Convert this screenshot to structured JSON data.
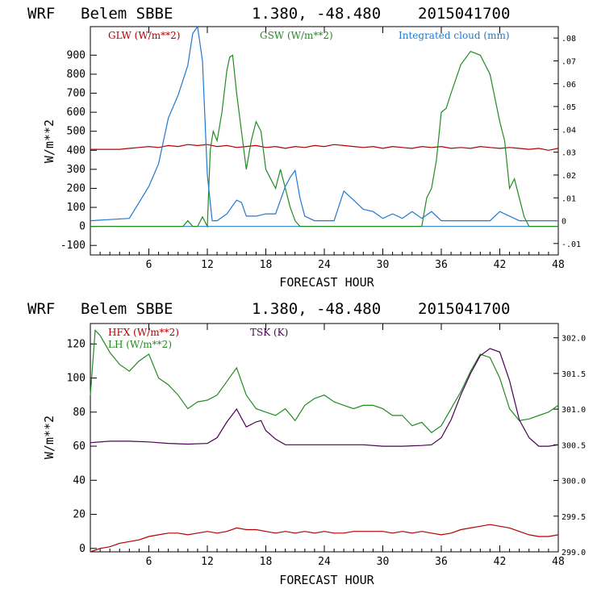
{
  "chart_data": [
    {
      "type": "line",
      "title": {
        "model": "WRF",
        "station": "Belem SBBE",
        "coords": "1.380, -48.480",
        "run": "2015041700"
      },
      "xlabel": "FORECAST HOUR",
      "ylabel": "W/m**2",
      "xlim": [
        0,
        48
      ],
      "ylim": [
        -150,
        1050
      ],
      "y2lim": [
        -0.015,
        0.085
      ],
      "x_ticks": [
        "6",
        "12",
        "18",
        "24",
        "30",
        "36",
        "42",
        "48"
      ],
      "y_ticks": [
        "-100",
        "0",
        "100",
        "200",
        "300",
        "400",
        "500",
        "600",
        "700",
        "800",
        "900"
      ],
      "y2_ticks": [
        "-.01",
        "0",
        ".01",
        ".02",
        ".03",
        ".04",
        ".05",
        ".06",
        ".07",
        ".08"
      ],
      "series": [
        {
          "name": "GLW (W/m**2)",
          "axis": "left",
          "color": "#b30000",
          "x": [
            0,
            3,
            4,
            5,
            6,
            7,
            8,
            9,
            10,
            11,
            12,
            13,
            14,
            15,
            16,
            17,
            18,
            19,
            20,
            21,
            22,
            23,
            24,
            25,
            26,
            27,
            28,
            29,
            30,
            31,
            32,
            33,
            34,
            35,
            36,
            37,
            38,
            39,
            40,
            41,
            42,
            43,
            44,
            45,
            46,
            47,
            48
          ],
          "values": [
            405,
            405,
            410,
            415,
            420,
            415,
            425,
            420,
            430,
            425,
            430,
            420,
            425,
            415,
            420,
            425,
            415,
            420,
            410,
            420,
            415,
            425,
            420,
            430,
            425,
            420,
            415,
            420,
            410,
            420,
            415,
            410,
            420,
            415,
            420,
            410,
            415,
            410,
            420,
            415,
            410,
            415,
            410,
            405,
            410,
            400,
            410
          ]
        },
        {
          "name": "GSW (W/m**2)",
          "axis": "left",
          "color": "#228b22",
          "x": [
            0,
            8,
            9.5,
            10,
            10.5,
            11,
            11.5,
            12,
            12.3,
            12.6,
            13,
            13.5,
            14,
            14.3,
            14.6,
            15,
            15.5,
            16,
            16.5,
            17,
            17.5,
            18,
            18.5,
            19,
            19.5,
            20,
            20.5,
            21,
            21.5,
            34,
            34.5,
            35,
            35.5,
            36,
            36.5,
            37,
            38,
            39,
            40,
            41,
            42,
            42.5,
            43,
            43.5,
            44,
            44.5,
            45,
            48
          ],
          "values": [
            0,
            0,
            0,
            30,
            0,
            0,
            50,
            0,
            400,
            500,
            450,
            600,
            820,
            890,
            900,
            700,
            500,
            300,
            450,
            550,
            500,
            300,
            250,
            200,
            300,
            200,
            100,
            30,
            0,
            0,
            150,
            200,
            350,
            600,
            620,
            700,
            850,
            920,
            900,
            800,
            550,
            450,
            200,
            250,
            150,
            50,
            0,
            0
          ]
        },
        {
          "name": "Integrated cloud (mm)",
          "axis": "right",
          "color": "#1f78d1",
          "x": [
            0,
            4,
            5,
            6,
            7,
            8,
            9,
            10,
            10.5,
            11,
            11.5,
            12,
            12.5,
            13,
            14,
            15,
            15.5,
            16,
            17,
            18,
            19,
            20,
            20.5,
            21,
            21.5,
            22,
            23,
            25,
            26,
            27,
            28,
            29,
            30,
            31,
            32,
            33,
            34,
            35,
            36,
            37,
            40,
            41,
            42,
            43,
            44,
            45,
            48
          ],
          "values": [
            0,
            0.001,
            0.008,
            0.015,
            0.025,
            0.045,
            0.055,
            0.068,
            0.082,
            0.085,
            0.07,
            0.02,
            0,
            0,
            0.003,
            0.009,
            0.008,
            0.002,
            0.002,
            0.003,
            0.003,
            0.015,
            0.019,
            0.022,
            0.01,
            0.002,
            0,
            0,
            0.013,
            0.009,
            0.005,
            0.004,
            0.001,
            0.003,
            0.001,
            0.004,
            0.001,
            0.004,
            0,
            0,
            0,
            0,
            0.004,
            0.002,
            0,
            0,
            0
          ]
        }
      ]
    },
    {
      "type": "line",
      "title": {
        "model": "WRF",
        "station": "Belem SBBE",
        "coords": "1.380, -48.480",
        "run": "2015041700"
      },
      "xlabel": "FORECAST HOUR",
      "ylabel": "W/m**2",
      "xlim": [
        0,
        48
      ],
      "ylim": [
        -2,
        132
      ],
      "y2lim": [
        299.0,
        302.2
      ],
      "x_ticks": [
        "6",
        "12",
        "18",
        "24",
        "30",
        "36",
        "42",
        "48"
      ],
      "y_ticks": [
        "0",
        "20",
        "40",
        "60",
        "80",
        "100",
        "120"
      ],
      "y2_ticks": [
        "299.0",
        "299.5",
        "300.0",
        "300.5",
        "301.0",
        "301.5",
        "302.0"
      ],
      "series": [
        {
          "name": "HFX (W/m**2)",
          "axis": "left",
          "color": "#b30000",
          "x": [
            0,
            1,
            2,
            3,
            4,
            5,
            6,
            7,
            8,
            9,
            10,
            11,
            12,
            13,
            14,
            15,
            16,
            17,
            18,
            19,
            20,
            21,
            22,
            23,
            24,
            25,
            26,
            27,
            28,
            29,
            30,
            31,
            32,
            33,
            34,
            35,
            36,
            37,
            38,
            39,
            40,
            41,
            42,
            43,
            44,
            45,
            46,
            47,
            48
          ],
          "values": [
            -2,
            0,
            1,
            3,
            4,
            5,
            7,
            8,
            9,
            9,
            8,
            9,
            10,
            9,
            10,
            12,
            11,
            11,
            10,
            9,
            10,
            9,
            10,
            9,
            10,
            9,
            9,
            10,
            10,
            10,
            10,
            9,
            10,
            9,
            10,
            9,
            8,
            9,
            11,
            12,
            13,
            14,
            13,
            12,
            10,
            8,
            7,
            7,
            8
          ]
        },
        {
          "name": "LH (W/m**2)",
          "axis": "left",
          "color": "#228b22",
          "x": [
            0,
            0.5,
            1,
            2,
            3,
            4,
            5,
            6,
            7,
            8,
            9,
            10,
            11,
            12,
            13,
            14,
            15,
            16,
            17,
            18,
            19,
            20,
            21,
            22,
            23,
            24,
            25,
            26,
            27,
            28,
            29,
            30,
            31,
            32,
            33,
            34,
            35,
            36,
            37,
            38,
            39,
            40,
            41,
            42,
            43,
            44,
            45,
            46,
            47,
            48
          ],
          "values": [
            90,
            128,
            125,
            115,
            108,
            104,
            110,
            114,
            100,
            96,
            90,
            82,
            86,
            87,
            90,
            98,
            106,
            90,
            82,
            80,
            78,
            82,
            75,
            84,
            88,
            90,
            86,
            84,
            82,
            84,
            84,
            82,
            78,
            78,
            72,
            74,
            68,
            72,
            82,
            92,
            104,
            114,
            112,
            100,
            82,
            75,
            76,
            78,
            80,
            84
          ]
        },
        {
          "name": "TSK (K)",
          "axis": "right",
          "color": "#4b0055",
          "x": [
            0,
            2,
            4,
            6,
            8,
            10,
            12,
            13,
            14,
            15,
            16,
            17,
            17.5,
            18,
            19,
            20,
            22,
            24,
            26,
            28,
            30,
            32,
            34,
            35,
            36,
            37,
            38,
            39,
            40,
            41,
            42,
            43,
            44,
            45,
            46,
            47,
            48
          ],
          "values": [
            300.53,
            300.55,
            300.55,
            300.54,
            300.52,
            300.51,
            300.52,
            300.6,
            300.82,
            301.0,
            300.75,
            300.82,
            300.84,
            300.7,
            300.58,
            300.5,
            300.5,
            300.5,
            300.5,
            300.5,
            300.48,
            300.48,
            300.49,
            300.5,
            300.6,
            300.85,
            301.2,
            301.5,
            301.75,
            301.85,
            301.8,
            301.4,
            300.85,
            300.6,
            300.48,
            300.48,
            300.5
          ]
        }
      ]
    }
  ]
}
